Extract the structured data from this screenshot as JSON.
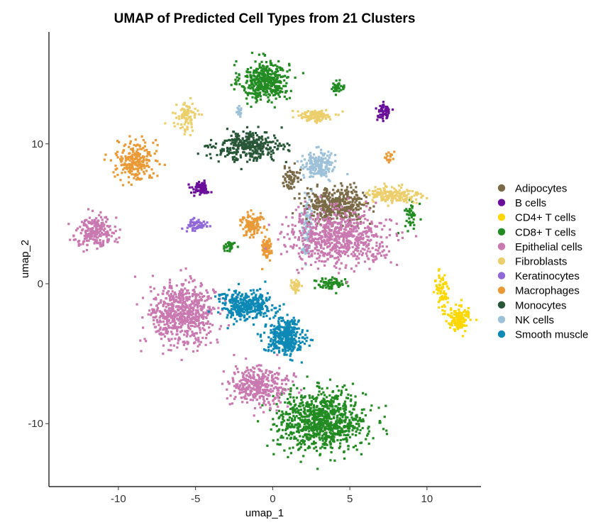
{
  "chart_data": {
    "type": "scatter",
    "title": "UMAP of Predicted Cell Types from 21 Clusters",
    "xlabel": "umap_1",
    "ylabel": "umap_2",
    "xlim": [
      -14.5,
      13.5
    ],
    "ylim": [
      -14.5,
      18
    ],
    "xticks": [
      -10,
      -5,
      0,
      5,
      10
    ],
    "yticks": [
      -10,
      0,
      10
    ],
    "grid": false,
    "legend_position": "right",
    "legend": [
      "Adipocytes",
      "B cells",
      "CD4+ T cells",
      "CD8+ T cells",
      "Epithelial cells",
      "Fibroblasts",
      "Keratinocytes",
      "Macrophages",
      "Monocytes",
      "NK cells",
      "Smooth muscle"
    ],
    "colors": {
      "Adipocytes": "#7b6a47",
      "B cells": "#6a0f9a",
      "CD4+ T cells": "#ffd700",
      "CD8+ T cells": "#228b22",
      "Epithelial cells": "#c978b0",
      "Fibroblasts": "#eccf6c",
      "Keratinocytes": "#9068d8",
      "Macrophages": "#e99a36",
      "Monocytes": "#285738",
      "NK cells": "#9cc1d8",
      "Smooth muscle": "#0d89b6"
    },
    "clusters": [
      {
        "cell_type": "CD8+ T cells",
        "center": [
          -0.5,
          14.5
        ],
        "spread": [
          1.4,
          1.3
        ],
        "n": 420
      },
      {
        "cell_type": "CD8+ T cells",
        "center": [
          3.2,
          -9.8
        ],
        "spread": [
          2.6,
          1.9
        ],
        "n": 900
      },
      {
        "cell_type": "CD8+ T cells",
        "center": [
          4.2,
          14.0
        ],
        "spread": [
          0.4,
          0.3
        ],
        "n": 40
      },
      {
        "cell_type": "CD8+ T cells",
        "center": [
          3.8,
          0.0
        ],
        "spread": [
          1.0,
          0.4
        ],
        "n": 70
      },
      {
        "cell_type": "CD8+ T cells",
        "center": [
          -2.8,
          2.7
        ],
        "spread": [
          0.4,
          0.3
        ],
        "n": 30
      },
      {
        "cell_type": "CD8+ T cells",
        "center": [
          9.0,
          5.0
        ],
        "spread": [
          0.4,
          0.9
        ],
        "n": 40
      },
      {
        "cell_type": "Fibroblasts",
        "center": [
          -5.6,
          11.9
        ],
        "spread": [
          0.6,
          0.9
        ],
        "n": 90
      },
      {
        "cell_type": "Fibroblasts",
        "center": [
          2.8,
          12.0
        ],
        "spread": [
          1.0,
          0.4
        ],
        "n": 110
      },
      {
        "cell_type": "Fibroblasts",
        "center": [
          7.8,
          6.3
        ],
        "spread": [
          1.7,
          0.6
        ],
        "n": 170
      },
      {
        "cell_type": "Fibroblasts",
        "center": [
          1.5,
          -0.2
        ],
        "spread": [
          0.4,
          0.5
        ],
        "n": 40
      },
      {
        "cell_type": "B cells",
        "center": [
          7.2,
          12.3
        ],
        "spread": [
          0.4,
          0.6
        ],
        "n": 60
      },
      {
        "cell_type": "B cells",
        "center": [
          -4.7,
          6.8
        ],
        "spread": [
          0.5,
          0.4
        ],
        "n": 80
      },
      {
        "cell_type": "Monocytes",
        "center": [
          -1.5,
          9.8
        ],
        "spread": [
          2.0,
          0.9
        ],
        "n": 320
      },
      {
        "cell_type": "Macrophages",
        "center": [
          -8.9,
          8.8
        ],
        "spread": [
          1.1,
          1.3
        ],
        "n": 240
      },
      {
        "cell_type": "Macrophages",
        "center": [
          -1.4,
          4.3
        ],
        "spread": [
          0.6,
          0.8
        ],
        "n": 110
      },
      {
        "cell_type": "Macrophages",
        "center": [
          -0.4,
          2.5
        ],
        "spread": [
          0.3,
          0.9
        ],
        "n": 60
      },
      {
        "cell_type": "Macrophages",
        "center": [
          7.5,
          9.1
        ],
        "spread": [
          0.3,
          0.3
        ],
        "n": 20
      },
      {
        "cell_type": "NK cells",
        "center": [
          3.0,
          8.5
        ],
        "spread": [
          0.9,
          0.9
        ],
        "n": 170
      },
      {
        "cell_type": "NK cells",
        "center": [
          2.2,
          4.0
        ],
        "spread": [
          0.3,
          2.2
        ],
        "n": 100
      },
      {
        "cell_type": "NK cells",
        "center": [
          -2.2,
          12.3
        ],
        "spread": [
          0.2,
          0.3
        ],
        "n": 15
      },
      {
        "cell_type": "Adipocytes",
        "center": [
          4.2,
          5.6
        ],
        "spread": [
          1.8,
          1.1
        ],
        "n": 420
      },
      {
        "cell_type": "Adipocytes",
        "center": [
          1.2,
          7.6
        ],
        "spread": [
          0.5,
          0.8
        ],
        "n": 60
      },
      {
        "cell_type": "Epithelial cells",
        "center": [
          -11.5,
          3.8
        ],
        "spread": [
          1.1,
          1.0
        ],
        "n": 220
      },
      {
        "cell_type": "Epithelial cells",
        "center": [
          4.2,
          3.3
        ],
        "spread": [
          3.0,
          1.7
        ],
        "n": 700
      },
      {
        "cell_type": "Epithelial cells",
        "center": [
          -5.8,
          -2.2
        ],
        "spread": [
          1.9,
          2.0
        ],
        "n": 650
      },
      {
        "cell_type": "Epithelial cells",
        "center": [
          -0.9,
          -7.3
        ],
        "spread": [
          1.7,
          1.3
        ],
        "n": 350
      },
      {
        "cell_type": "Smooth muscle",
        "center": [
          -1.8,
          -1.6
        ],
        "spread": [
          1.6,
          0.9
        ],
        "n": 350
      },
      {
        "cell_type": "Smooth muscle",
        "center": [
          0.8,
          -3.8
        ],
        "spread": [
          1.1,
          1.2
        ],
        "n": 330
      },
      {
        "cell_type": "CD4+ T cells",
        "center": [
          11.0,
          -0.5
        ],
        "spread": [
          0.4,
          1.2
        ],
        "n": 70
      },
      {
        "cell_type": "CD4+ T cells",
        "center": [
          12.0,
          -2.6
        ],
        "spread": [
          0.6,
          0.8
        ],
        "n": 140
      },
      {
        "cell_type": "Keratinocytes",
        "center": [
          -5.0,
          4.2
        ],
        "spread": [
          0.7,
          0.3
        ],
        "n": 60
      }
    ]
  }
}
